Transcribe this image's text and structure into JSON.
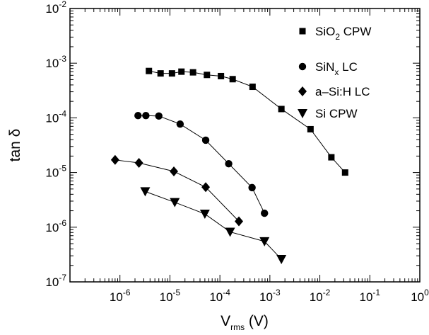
{
  "chart_data": {
    "type": "scatter",
    "line_connected": true,
    "xscale": "log",
    "yscale": "log",
    "xlim": [
      1e-07,
      1
    ],
    "ylim": [
      1e-07,
      0.01
    ],
    "x_ticks": [
      {
        "base": "10",
        "exp": "-6",
        "value": 1e-06
      },
      {
        "base": "10",
        "exp": "-5",
        "value": 1e-05
      },
      {
        "base": "10",
        "exp": "-4",
        "value": 0.0001
      },
      {
        "base": "10",
        "exp": "-3",
        "value": 0.001
      },
      {
        "base": "10",
        "exp": "-2",
        "value": 0.01
      },
      {
        "base": "10",
        "exp": "-1",
        "value": 0.1
      },
      {
        "base": "10",
        "exp": "0",
        "value": 1
      }
    ],
    "y_ticks": [
      {
        "base": "10",
        "exp": "-7",
        "value": 1e-07
      },
      {
        "base": "10",
        "exp": "-6",
        "value": 1e-06
      },
      {
        "base": "10",
        "exp": "-5",
        "value": 1e-05
      },
      {
        "base": "10",
        "exp": "-4",
        "value": 0.0001
      },
      {
        "base": "10",
        "exp": "-3",
        "value": 0.001
      },
      {
        "base": "10",
        "exp": "-2",
        "value": 0.01
      }
    ],
    "xlabel": {
      "main": "V",
      "sub": "rms",
      "unit": " (V)"
    },
    "ylabel": "tan δ",
    "legend_position": "top-right",
    "series": [
      {
        "name": {
          "main": "SiO",
          "sub": "2",
          "tail": " CPW"
        },
        "marker": "square",
        "x": [
          3.8e-06,
          6.5e-06,
          1.1e-05,
          1.7e-05,
          2.9e-05,
          5.5e-05,
          0.000105,
          0.00018,
          0.00045,
          0.0017,
          0.0065,
          0.017,
          0.032
        ],
        "y": [
          0.00072,
          0.00065,
          0.00065,
          0.0007,
          0.00068,
          0.00061,
          0.00058,
          0.00051,
          0.00037,
          0.000145,
          6.2e-05,
          1.9e-05,
          1e-05
        ]
      },
      {
        "name": {
          "main": "SiN",
          "sub": "x",
          "tail": " LC"
        },
        "marker": "circle",
        "x": [
          2.3e-06,
          3.3e-06,
          6e-06,
          1.6e-05,
          5.2e-05,
          0.00015,
          0.00044,
          0.00078
        ],
        "y": [
          0.00011,
          0.00011,
          0.000108,
          7.7e-05,
          3.9e-05,
          1.45e-05,
          5.3e-06,
          1.8e-06
        ]
      },
      {
        "name": {
          "main": "a–Si:H LC",
          "sub": "",
          "tail": ""
        },
        "marker": "diamond",
        "x": [
          8e-07,
          2.4e-06,
          1.2e-05,
          5.2e-05,
          0.00024
        ],
        "y": [
          1.7e-05,
          1.5e-05,
          1.05e-05,
          5.4e-06,
          1.28e-06
        ]
      },
      {
        "name": {
          "main": "Si CPW",
          "sub": "",
          "tail": ""
        },
        "marker": "triangle-down",
        "x": [
          3.2e-06,
          1.25e-05,
          5e-05,
          0.00016,
          0.00078,
          0.0017
        ],
        "y": [
          4.5e-06,
          2.85e-06,
          1.75e-06,
          8.2e-07,
          5.5e-07,
          2.6e-07
        ]
      }
    ]
  }
}
